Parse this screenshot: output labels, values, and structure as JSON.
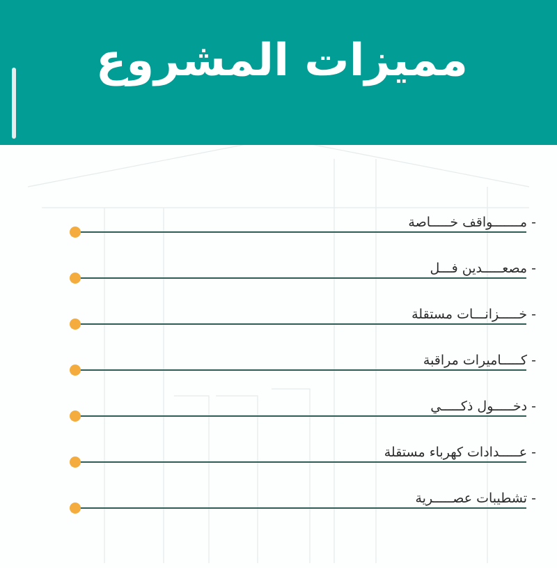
{
  "header": {
    "title": "مميزات المشروع"
  },
  "features": [
    "- مـــــــواقف خـــــاصة",
    "- مصعـــــدين فـــل",
    "- خـــــزانـــات مستقلة",
    "- كـــــاميرات مراقبة",
    "- دخـــــول ذكـــــي",
    "- عـــــدادات كهرباء مستقلة",
    "- تشطيبات عصـــــرية"
  ],
  "colors": {
    "header": "#029d95",
    "line": "#2f5d55",
    "dot": "#f4ac3e"
  }
}
